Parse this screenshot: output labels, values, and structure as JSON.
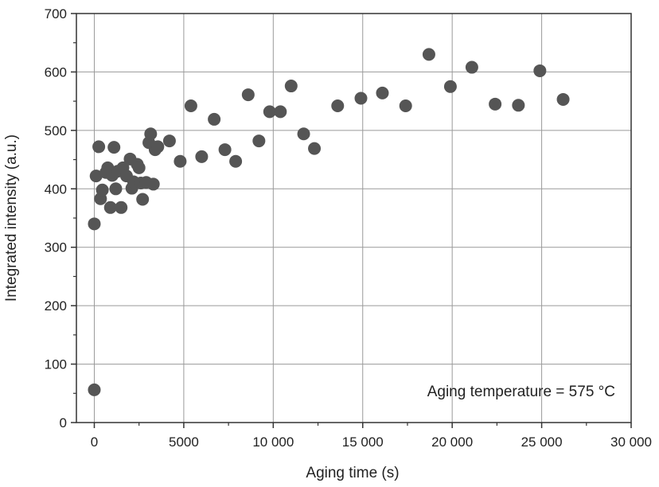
{
  "chart_data": {
    "type": "scatter",
    "title": "",
    "xlabel": "Aging time (s)",
    "ylabel": "Integrated intensity (a.u.)",
    "xlim": [
      -1000,
      30000
    ],
    "ylim": [
      0,
      700
    ],
    "x_ticks": [
      0,
      5000,
      10000,
      15000,
      20000,
      25000,
      30000
    ],
    "x_tick_labels": [
      "0",
      "5000",
      "10 000",
      "15 000",
      "20 000",
      "25 000",
      "30 000"
    ],
    "y_ticks": [
      0,
      100,
      200,
      300,
      400,
      500,
      600,
      700
    ],
    "y_tick_labels": [
      "0",
      "100",
      "200",
      "300",
      "400",
      "500",
      "600",
      "700"
    ],
    "grid": true,
    "annotation": "Aging temperature = 575 °C",
    "annotation_position": "bottom-right",
    "marker_color": "#555555",
    "series": [
      {
        "points": [
          [
            0,
            56
          ],
          [
            0,
            340
          ],
          [
            100,
            422
          ],
          [
            250,
            472
          ],
          [
            350,
            383
          ],
          [
            450,
            398
          ],
          [
            650,
            428
          ],
          [
            750,
            436
          ],
          [
            900,
            368
          ],
          [
            1000,
            423
          ],
          [
            1100,
            471
          ],
          [
            1200,
            400
          ],
          [
            1300,
            430
          ],
          [
            1500,
            368
          ],
          [
            1600,
            436
          ],
          [
            1800,
            422
          ],
          [
            2000,
            451
          ],
          [
            2100,
            401
          ],
          [
            2200,
            412
          ],
          [
            2400,
            442
          ],
          [
            2500,
            436
          ],
          [
            2600,
            410
          ],
          [
            2700,
            382
          ],
          [
            2900,
            411
          ],
          [
            3050,
            479
          ],
          [
            3150,
            494
          ],
          [
            3300,
            408
          ],
          [
            3400,
            467
          ],
          [
            3550,
            472
          ],
          [
            4200,
            482
          ],
          [
            4800,
            447
          ],
          [
            5400,
            542
          ],
          [
            6000,
            455
          ],
          [
            6700,
            519
          ],
          [
            7300,
            467
          ],
          [
            7900,
            447
          ],
          [
            8600,
            561
          ],
          [
            9200,
            482
          ],
          [
            9800,
            532
          ],
          [
            10400,
            532
          ],
          [
            11000,
            576
          ],
          [
            11700,
            494
          ],
          [
            12300,
            469
          ],
          [
            13600,
            542
          ],
          [
            14900,
            555
          ],
          [
            16100,
            564
          ],
          [
            17400,
            542
          ],
          [
            18700,
            630
          ],
          [
            19900,
            575
          ],
          [
            21100,
            608
          ],
          [
            22400,
            545
          ],
          [
            23700,
            543
          ],
          [
            24900,
            602
          ],
          [
            26200,
            553
          ]
        ]
      }
    ]
  }
}
